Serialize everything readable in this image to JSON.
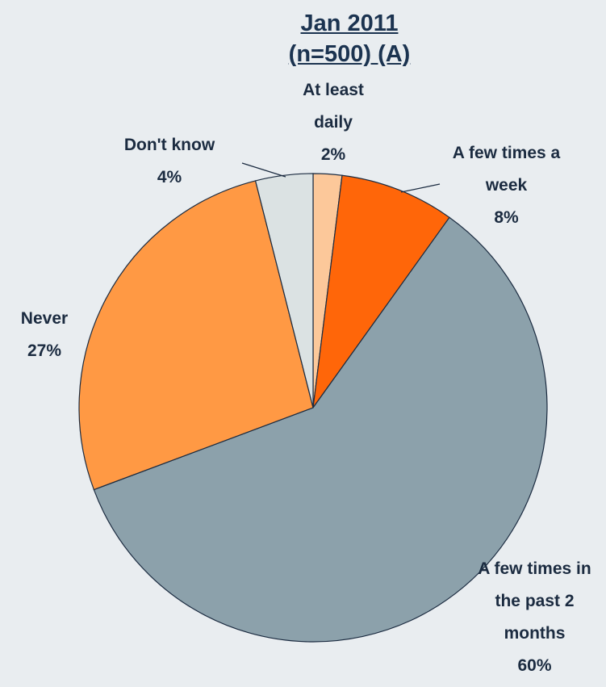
{
  "chart_data": {
    "type": "pie",
    "title": "Jan 2011 (n=500) (A)",
    "categories": [
      "At least daily",
      "A few times a week",
      "A few times in the past 2 months",
      "Never",
      "Don't know"
    ],
    "values": [
      2,
      8,
      60,
      27,
      4
    ],
    "value_labels": [
      "2%",
      "8%",
      "60%",
      "27%",
      "4%"
    ],
    "colors": [
      "#fcc89a",
      "#ff6609",
      "#8ca1ab",
      "#ff9944",
      "#dbe2e3"
    ]
  }
}
